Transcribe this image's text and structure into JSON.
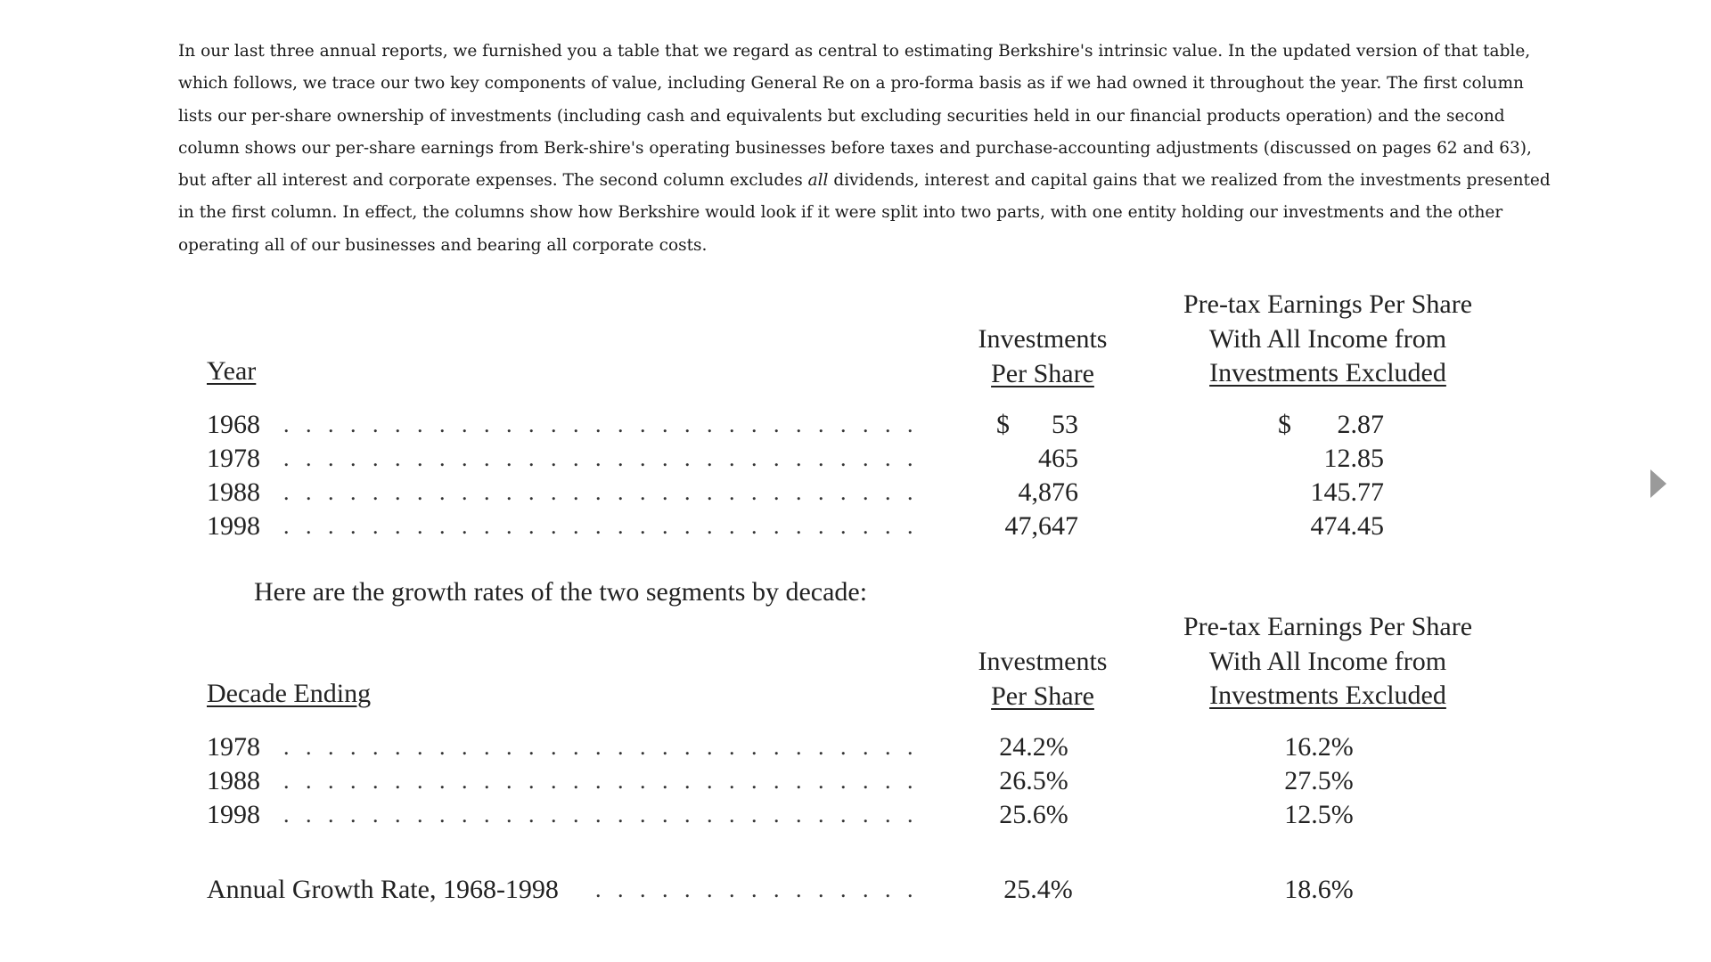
{
  "intro": {
    "part1": "In our last three annual reports, we furnished you a table that we regard as central to estimating Berkshire's intrinsic value. In the updated version of that table, which follows, we trace our two key components of value, including General Re on a pro-forma basis as if we had owned it throughout the year. The first column lists our per-share ownership of investments (including cash and equivalents but excluding securities held in our financial products operation) and the second column shows our per-share earnings from Berk-shire's operating businesses before taxes and purchase-accounting adjustments (discussed on pages 62 and 63), but after all interest and corporate expenses. The second column excludes ",
    "emphasis": "all",
    "part2": " dividends, interest and capital gains that we realized from the investments presented in the first column. In effect, the columns show how Berkshire would look if it were split into two parts, with one entity holding our investments and the other operating all of our businesses and bearing all corporate costs."
  },
  "table1": {
    "year_header": "Year",
    "col1_header": [
      "Investments",
      "Per Share"
    ],
    "col2_header": [
      "Pre-tax Earnings Per Share",
      "With All Income from",
      "Investments Excluded"
    ],
    "rows": [
      {
        "year": "1968",
        "inv": "53",
        "earn": "2.87"
      },
      {
        "year": "1978",
        "inv": "465",
        "earn": "12.85"
      },
      {
        "year": "1988",
        "inv": "4,876",
        "earn": "145.77"
      },
      {
        "year": "1998",
        "inv": "47,647",
        "earn": "474.45"
      }
    ],
    "currency": "$"
  },
  "transition": "Here are the growth rates of the two segments by decade:",
  "table2": {
    "decade_header": "Decade Ending",
    "col1_header": [
      "Investments",
      "Per Share"
    ],
    "col2_header": [
      "Pre-tax Earnings Per Share",
      "With All Income from",
      "Investments Excluded"
    ],
    "rows": [
      {
        "year": "1978",
        "inv": "24.2%",
        "earn": "16.2%"
      },
      {
        "year": "1988",
        "inv": "26.5%",
        "earn": "27.5%"
      },
      {
        "year": "1998",
        "inv": "25.6%",
        "earn": "12.5%"
      }
    ],
    "annual_label": "Annual Growth Rate, 1968-1998",
    "annual_inv": "25.4%",
    "annual_earn": "18.6%"
  },
  "dot_leader": ". . . . . . . . . . . . . . . . . . . . . . . . . . . . . . . . . . . . . . . . . .",
  "icons": {
    "next": "next-page-arrow-icon"
  }
}
